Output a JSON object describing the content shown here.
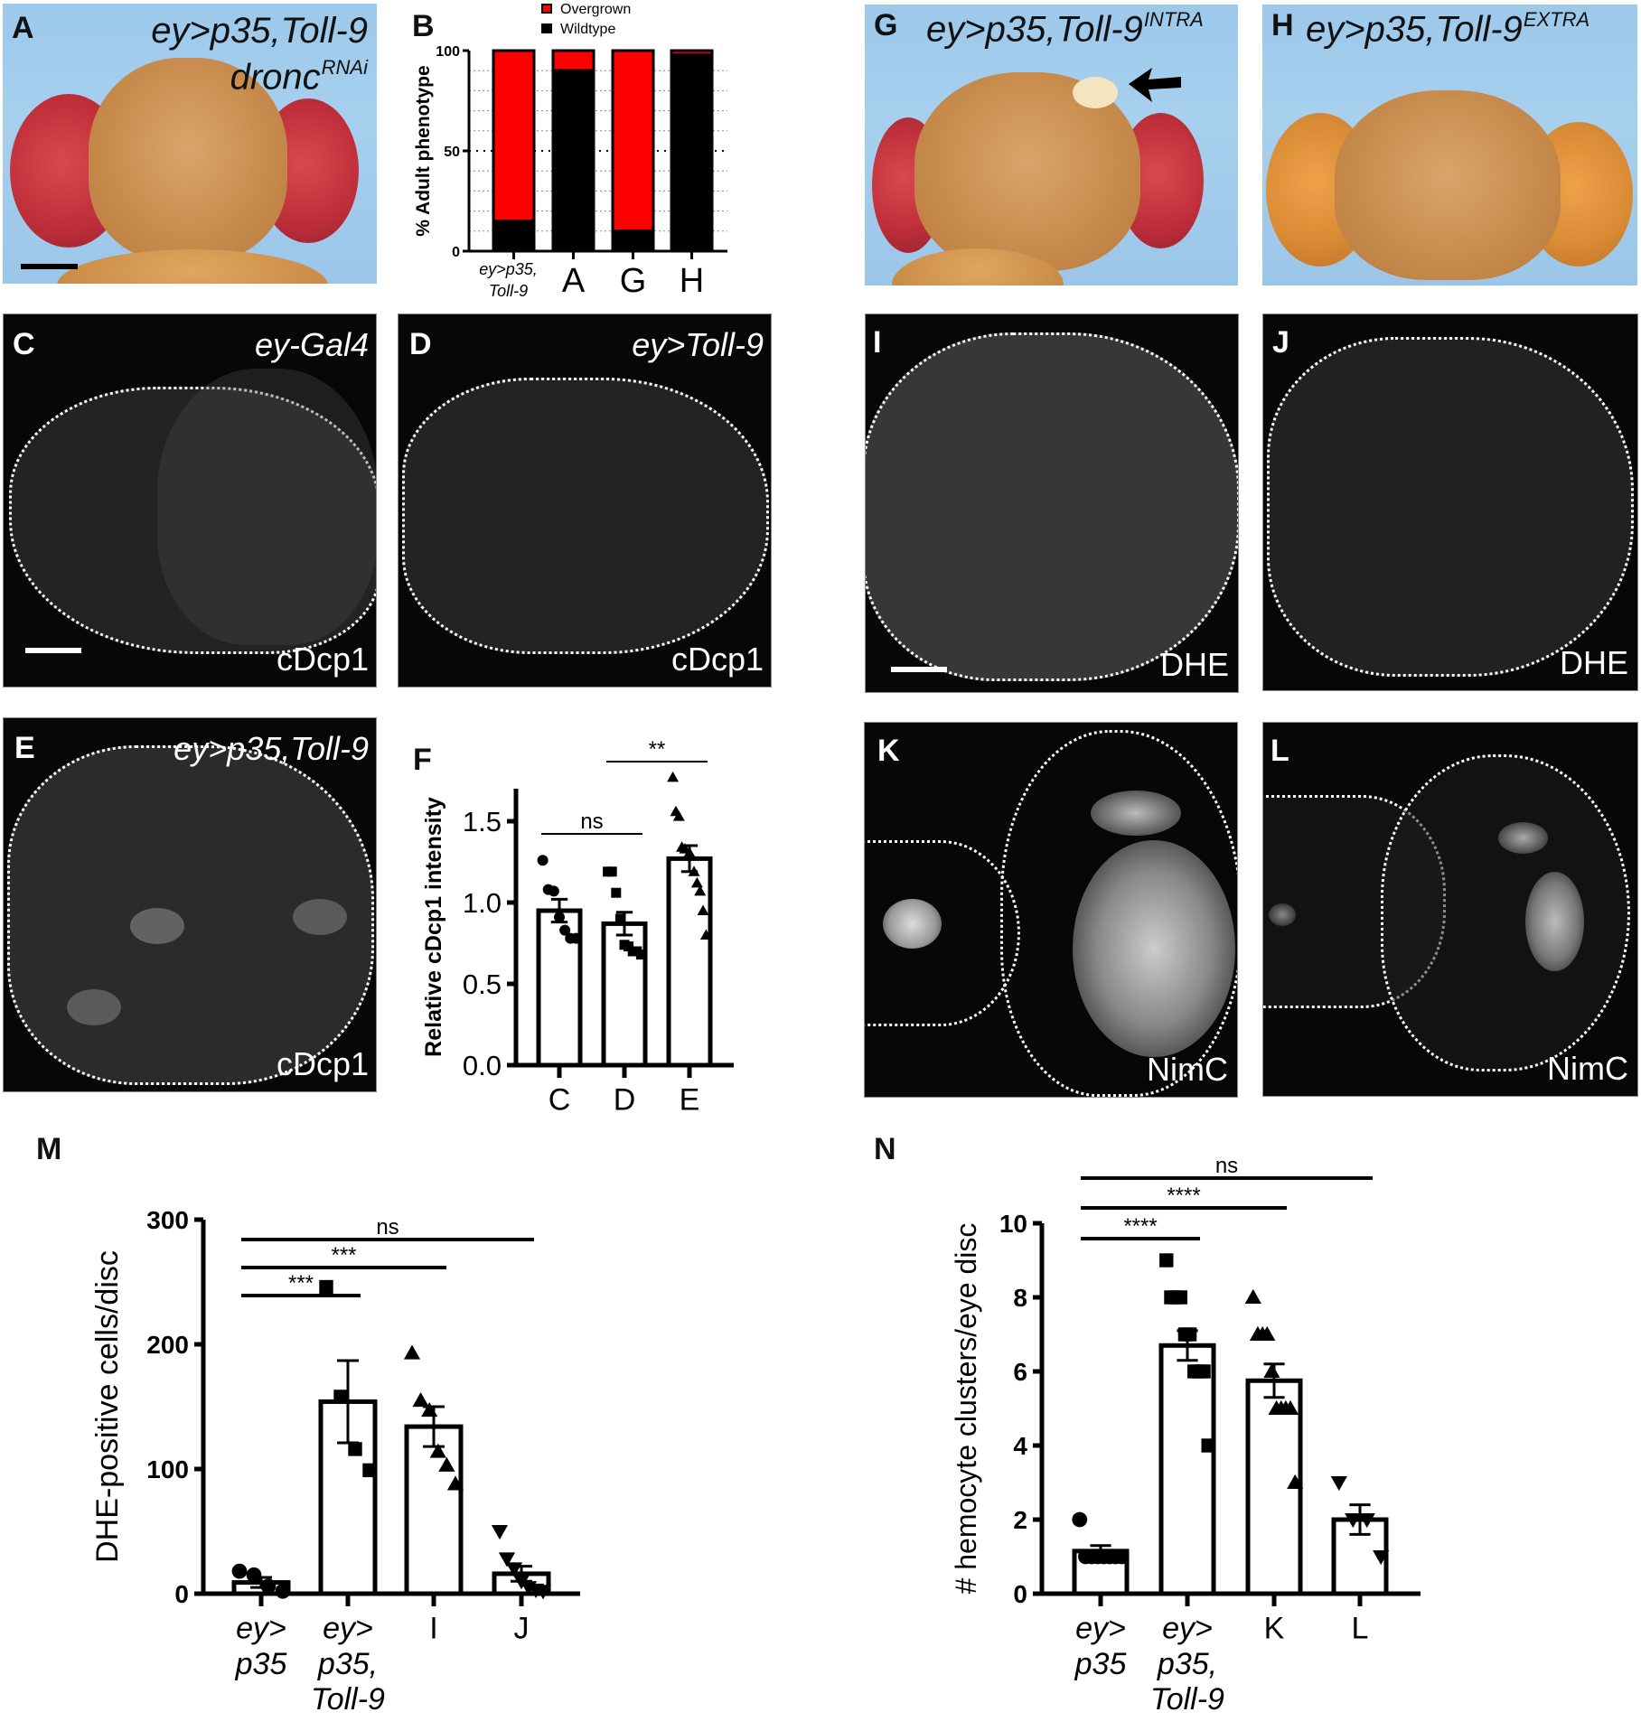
{
  "panels": {
    "A": {
      "letter": "A",
      "genotype_main": "ey>p35,Toll-9",
      "genotype_line2": "dronc",
      "genotype_sup": "RNAi"
    },
    "B": {
      "letter": "B"
    },
    "C": {
      "letter": "C",
      "genotype": "ey-Gal4",
      "stain": "cDcp1"
    },
    "D": {
      "letter": "D",
      "genotype": "ey>Toll-9",
      "stain": "cDcp1"
    },
    "E": {
      "letter": "E",
      "genotype": "ey>p35,Toll-9",
      "stain": "cDcp1"
    },
    "F": {
      "letter": "F"
    },
    "G": {
      "letter": "G",
      "genotype_main": "ey>p35,Toll-9",
      "genotype_sup": "INTRA",
      "annotation": "arrow pointing to overgrowth"
    },
    "H": {
      "letter": "H",
      "genotype_main": "ey>p35,Toll-9",
      "genotype_sup": "EXTRA"
    },
    "I": {
      "letter": "I",
      "stain": "DHE"
    },
    "J": {
      "letter": "J",
      "stain": "DHE"
    },
    "K": {
      "letter": "K",
      "stain": "NimC"
    },
    "L": {
      "letter": "L",
      "stain": "NimC"
    },
    "M": {
      "letter": "M"
    },
    "N": {
      "letter": "N"
    }
  },
  "colors": {
    "overgrown": "#ff0000",
    "wildtype": "#000000",
    "axis": "#000000"
  },
  "chart_data": [
    {
      "panel": "B",
      "type": "bar",
      "stacked": true,
      "title": "",
      "ylabel": "% Adult phenotype",
      "xlabel": "",
      "categories": [
        "ey>p35, Toll-9",
        "A",
        "G",
        "H"
      ],
      "category_lines": [
        [
          "ey>p35,",
          "Toll-9"
        ],
        [
          "A"
        ],
        [
          "G"
        ],
        [
          "H"
        ]
      ],
      "series": [
        {
          "name": "Wildtype",
          "color": "#000000",
          "values": [
            15,
            90,
            10,
            98
          ]
        },
        {
          "name": "Overgrown",
          "color": "#ff0000",
          "values": [
            85,
            10,
            90,
            2
          ]
        }
      ],
      "legend": [
        "Overgrown",
        "Wildtype"
      ],
      "legend_position": "top",
      "ylim": [
        0,
        100
      ],
      "yticks": [
        0,
        50,
        100
      ],
      "grid": "dotted horizontal every 10"
    },
    {
      "panel": "F",
      "type": "bar",
      "title": "",
      "ylabel": "Relative cDcp1 intensity",
      "xlabel": "",
      "categories": [
        "C",
        "D",
        "E"
      ],
      "values": [
        0.95,
        0.87,
        1.27
      ],
      "sem": [
        0.07,
        0.07,
        0.08
      ],
      "markers": [
        "circle",
        "square",
        "triangle-up"
      ],
      "points": [
        [
          1.26,
          1.08,
          1.07,
          0.91,
          0.83,
          0.78,
          0.78
        ],
        [
          1.19,
          1.19,
          1.06,
          0.9,
          0.74,
          0.73,
          0.7,
          0.7,
          0.68
        ],
        [
          1.77,
          1.56,
          1.53,
          1.34,
          1.33,
          1.29,
          1.29,
          1.19,
          1.12,
          1.07,
          0.95,
          0.8
        ]
      ],
      "ylim": [
        0,
        1.7
      ],
      "yticks": [
        "0.0",
        "0.5",
        "1.0",
        "1.5"
      ],
      "significance": [
        {
          "from": 0,
          "to": 1,
          "label": "ns"
        },
        {
          "from": 1,
          "to": 2,
          "label": "**"
        }
      ]
    },
    {
      "panel": "M",
      "type": "bar",
      "title": "",
      "ylabel": "DHE-positive cells/disc",
      "xlabel": "",
      "categories": [
        "ey> p35",
        "ey> p35, Toll-9",
        "I",
        "J"
      ],
      "category_lines": [
        [
          "ey>",
          "p35"
        ],
        [
          "ey>",
          "p35,",
          "Toll-9"
        ],
        [
          "I"
        ],
        [
          "J"
        ]
      ],
      "values": [
        9,
        154,
        134,
        16
      ],
      "sem": [
        4,
        33,
        16,
        6
      ],
      "markers": [
        "circle",
        "square",
        "triangle-up",
        "triangle-down"
      ],
      "points": [
        [
          18,
          15,
          6,
          2
        ],
        [
          246,
          158,
          116,
          99
        ],
        [
          193,
          155,
          147,
          114,
          103,
          88
        ],
        [
          50,
          28,
          20,
          10,
          5,
          3,
          2
        ]
      ],
      "ylim": [
        0,
        300
      ],
      "yticks": [
        "0",
        "100",
        "200",
        "300"
      ],
      "significance": [
        {
          "from": 0,
          "to": 1,
          "label": "***"
        },
        {
          "from": 0,
          "to": 2,
          "label": "***"
        },
        {
          "from": 0,
          "to": 3,
          "label": "ns"
        }
      ]
    },
    {
      "panel": "N",
      "type": "bar",
      "title": "",
      "ylabel": "# hemocyte clusters/eye disc",
      "xlabel": "",
      "categories": [
        "ey> p35",
        "ey> p35, Toll-9",
        "K",
        "L"
      ],
      "category_lines": [
        [
          "ey>",
          "p35"
        ],
        [
          "ey>",
          "p35,",
          "Toll-9"
        ],
        [
          "K"
        ],
        [
          "L"
        ]
      ],
      "values": [
        1.15,
        6.7,
        5.75,
        2.0
      ],
      "sem": [
        0.15,
        0.4,
        0.45,
        0.4
      ],
      "markers": [
        "circle",
        "square",
        "triangle-up",
        "triangle-down"
      ],
      "points": [
        [
          2,
          1,
          1,
          1,
          1,
          1,
          1,
          1
        ],
        [
          9,
          8,
          8,
          8,
          7,
          7,
          6,
          6,
          6,
          4
        ],
        [
          8,
          7,
          7,
          7,
          6,
          5,
          5,
          5,
          5,
          3
        ],
        [
          3,
          2,
          2,
          1
        ]
      ],
      "ylim": [
        0,
        10
      ],
      "yticks": [
        "0",
        "2",
        "4",
        "6",
        "8",
        "10"
      ],
      "significance": [
        {
          "from": 0,
          "to": 1,
          "label": "****"
        },
        {
          "from": 0,
          "to": 2,
          "label": "****"
        },
        {
          "from": 0,
          "to": 3,
          "label": "ns"
        }
      ]
    }
  ]
}
